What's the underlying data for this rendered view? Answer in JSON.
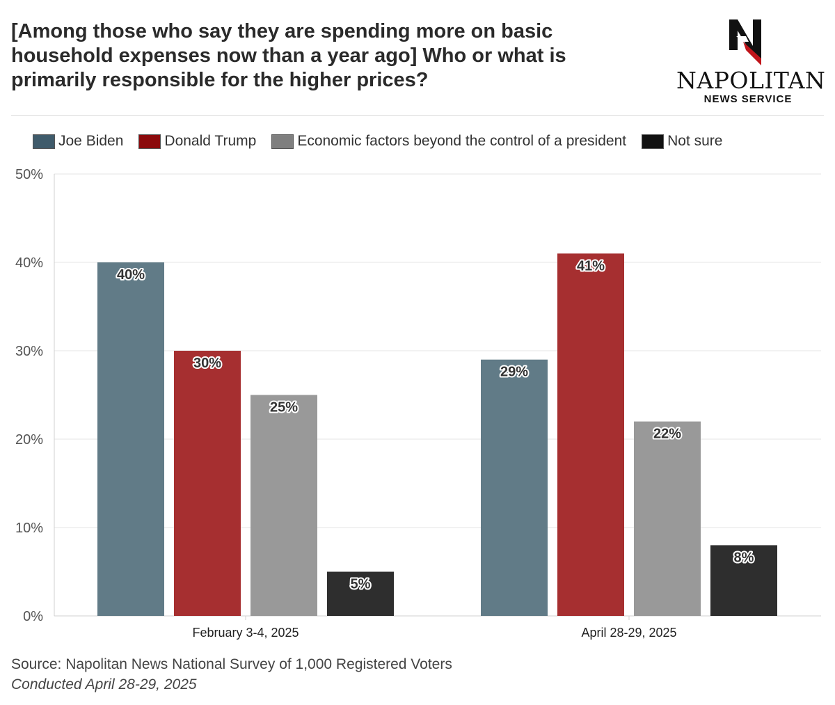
{
  "header": {
    "title": "[Among those who say they are spending more on basic household expenses now than a year ago] Who or what is primarily responsible for the higher prices?"
  },
  "logo": {
    "name": "NAPOLITAN",
    "subtitle": "NEWS SERVICE"
  },
  "footer": {
    "source": "Source: Napolitan News National Survey of 1,000 Registered Voters",
    "conducted": "Conducted April 28-29, 2025"
  },
  "chart_data": {
    "type": "bar",
    "title": "[Among those who say they are spending more on basic household expenses now than a year ago] Who or what is primarily responsible for the higher prices?",
    "xlabel": "",
    "ylabel": "",
    "categories": [
      "February 3-4, 2025",
      "April 28-29, 2025"
    ],
    "ylim": [
      0,
      50
    ],
    "yticks": [
      0,
      10,
      20,
      30,
      40,
      50
    ],
    "ytick_labels": [
      "0%",
      "10%",
      "20%",
      "30%",
      "40%",
      "50%"
    ],
    "grid": true,
    "legend_position": "top",
    "series": [
      {
        "name": "Joe Biden",
        "color": "#617b87",
        "values": [
          40,
          29
        ],
        "labels": [
          "40%",
          "29%"
        ]
      },
      {
        "name": "Donald Trump",
        "color": "#a62f30",
        "values": [
          30,
          41
        ],
        "labels": [
          "30%",
          "41%"
        ]
      },
      {
        "name": "Economic factors beyond the control of a president",
        "color": "#999999",
        "values": [
          25,
          22
        ],
        "labels": [
          "25%",
          "22%"
        ]
      },
      {
        "name": "Not sure",
        "color": "#2e2e2e",
        "values": [
          5,
          8
        ],
        "labels": [
          "5%",
          "8%"
        ]
      }
    ],
    "legend_swatch_colors": [
      "#3f5b6b",
      "#8b0a0c",
      "#7f7f7f",
      "#111111"
    ]
  }
}
